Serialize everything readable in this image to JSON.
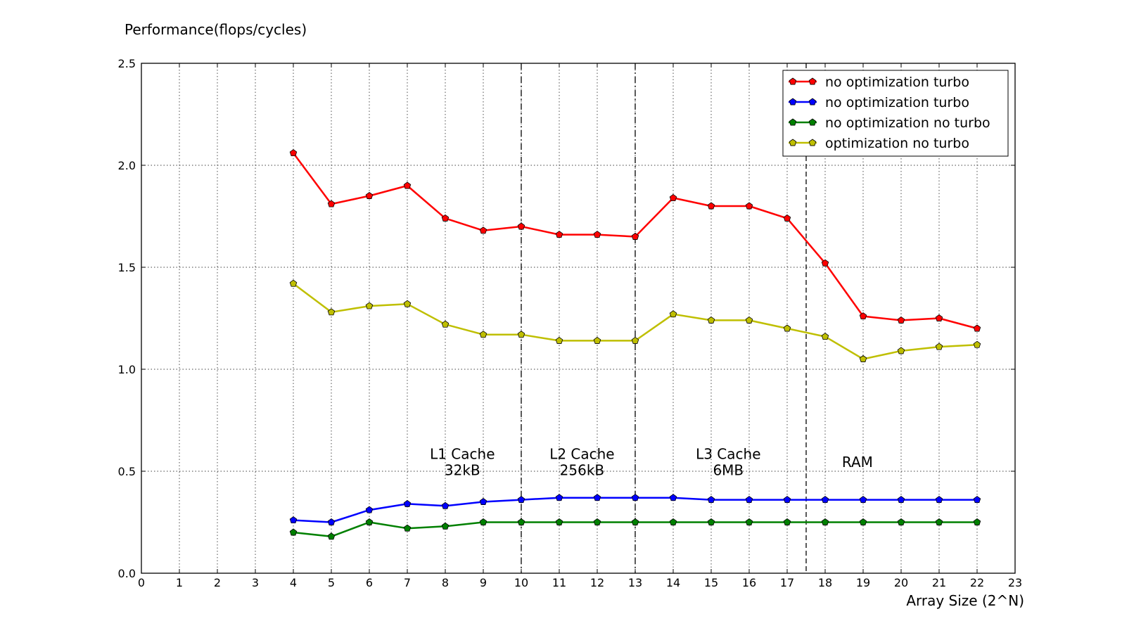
{
  "chart_data": {
    "type": "line",
    "title": "",
    "ylabel": "Performance(flops/cycles)",
    "xlabel": "Array Size (2^N)",
    "xlim": [
      0,
      23
    ],
    "ylim": [
      0,
      2.5
    ],
    "xticks": [
      "0",
      "1",
      "2",
      "3",
      "4",
      "5",
      "6",
      "7",
      "8",
      "9",
      "10",
      "11",
      "12",
      "13",
      "14",
      "15",
      "16",
      "17",
      "18",
      "19",
      "20",
      "21",
      "22",
      "23"
    ],
    "yticks": [
      "0.0",
      "0.5",
      "1.0",
      "1.5",
      "2.0",
      "2.5"
    ],
    "grid": true,
    "legend_position": "top-right",
    "x": [
      4,
      5,
      6,
      7,
      8,
      9,
      10,
      11,
      12,
      13,
      14,
      15,
      16,
      17,
      18,
      19,
      20,
      21,
      22
    ],
    "series": [
      {
        "name": "no optimization turbo",
        "color": "#ff0000",
        "values": [
          2.06,
          1.81,
          1.85,
          1.9,
          1.74,
          1.68,
          1.7,
          1.66,
          1.66,
          1.65,
          1.84,
          1.8,
          1.8,
          1.74,
          1.52,
          1.26,
          1.24,
          1.25,
          1.2
        ]
      },
      {
        "name": "no optimization turbo",
        "color": "#0000ff",
        "values": [
          0.26,
          0.25,
          0.31,
          0.34,
          0.33,
          0.35,
          0.36,
          0.37,
          0.37,
          0.37,
          0.37,
          0.36,
          0.36,
          0.36,
          0.36,
          0.36,
          0.36,
          0.36,
          0.36
        ]
      },
      {
        "name": "no optimization no turbo",
        "color": "#008000",
        "values": [
          0.2,
          0.18,
          0.25,
          0.22,
          0.23,
          0.25,
          0.25,
          0.25,
          0.25,
          0.25,
          0.25,
          0.25,
          0.25,
          0.25,
          0.25,
          0.25,
          0.25,
          0.25,
          0.25
        ]
      },
      {
        "name": "optimization no turbo",
        "color": "#bfbf00",
        "values": [
          1.42,
          1.28,
          1.31,
          1.32,
          1.22,
          1.17,
          1.17,
          1.14,
          1.14,
          1.14,
          1.27,
          1.24,
          1.24,
          1.2,
          1.16,
          1.05,
          1.09,
          1.11,
          1.12
        ]
      }
    ],
    "vlines": [
      {
        "x": 10,
        "style": "dashdot"
      },
      {
        "x": 13,
        "style": "dashdot"
      },
      {
        "x": 17.5,
        "style": "dashed"
      }
    ],
    "annotations": [
      {
        "lines": [
          "L1 Cache",
          "32kB"
        ],
        "x": 8.45,
        "y": 0.56
      },
      {
        "lines": [
          "L2 Cache",
          "256kB"
        ],
        "x": 11.6,
        "y": 0.56
      },
      {
        "lines": [
          "L3 Cache",
          "6MB"
        ],
        "x": 15.45,
        "y": 0.56
      },
      {
        "lines": [
          "RAM"
        ],
        "x": 18.85,
        "y": 0.52
      }
    ]
  }
}
